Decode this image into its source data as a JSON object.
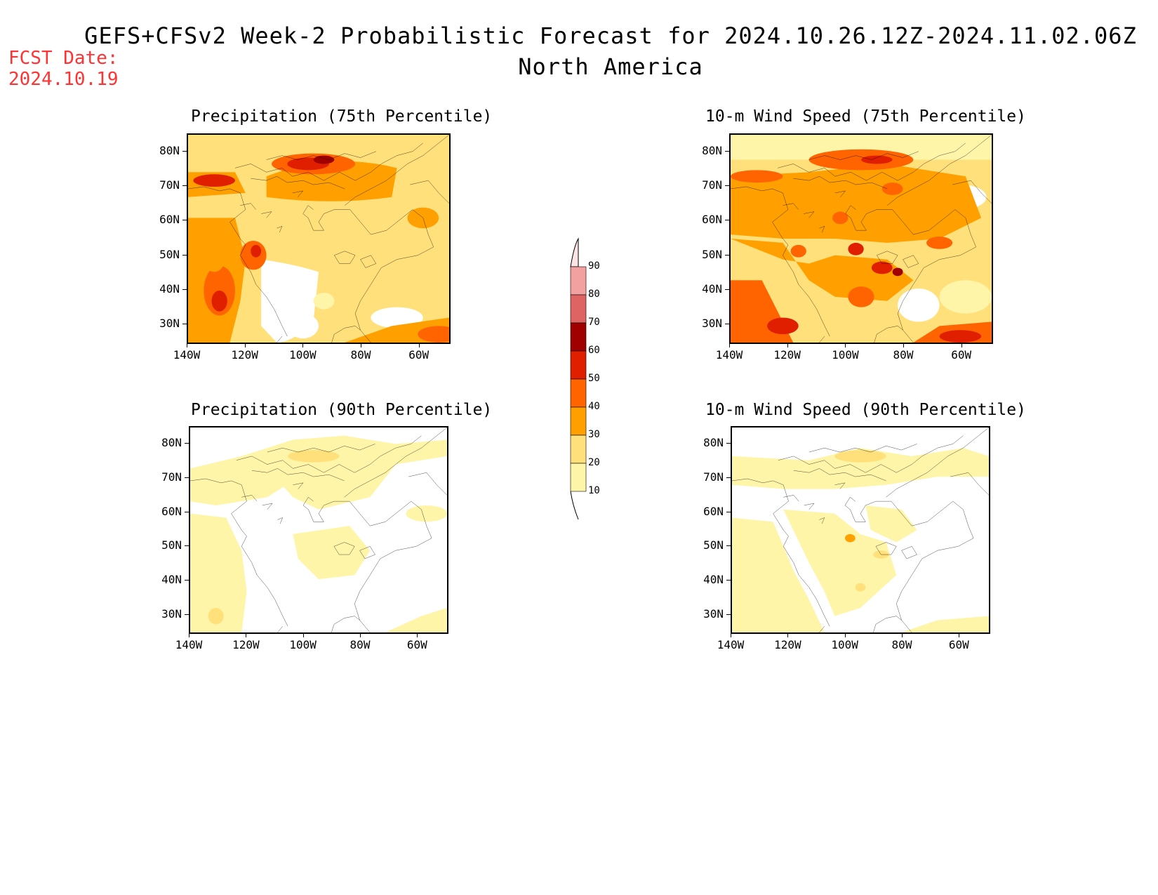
{
  "header": {
    "title_line1": "GEFS+CFSv2 Week-2 Probabilistic Forecast for 2024.10.26.12Z-2024.11.02.06Z",
    "title_line2": "North America",
    "fcst_label": "FCST Date:",
    "fcst_date": "2024.10.19"
  },
  "panels": [
    {
      "title": "Precipitation (75th Percentile)"
    },
    {
      "title": "10-m Wind Speed (75th Percentile)"
    },
    {
      "title": "Precipitation (90th Percentile)"
    },
    {
      "title": "10-m Wind Speed (90th Percentile)"
    }
  ],
  "axes": {
    "lat_labels": [
      "80N",
      "70N",
      "60N",
      "50N",
      "40N",
      "30N"
    ],
    "lon_labels": [
      "140W",
      "120W",
      "100W",
      "80W",
      "60W"
    ]
  },
  "colorbar": {
    "levels": [
      "90",
      "80",
      "70",
      "60",
      "50",
      "40",
      "30",
      "20",
      "10"
    ],
    "colors": [
      "#fce4e4",
      "#f2a0a0",
      "#de6464",
      "#a00000",
      "#e01e00",
      "#ff6400",
      "#ffa000",
      "#ffe07a",
      "#fff5a8"
    ]
  }
}
